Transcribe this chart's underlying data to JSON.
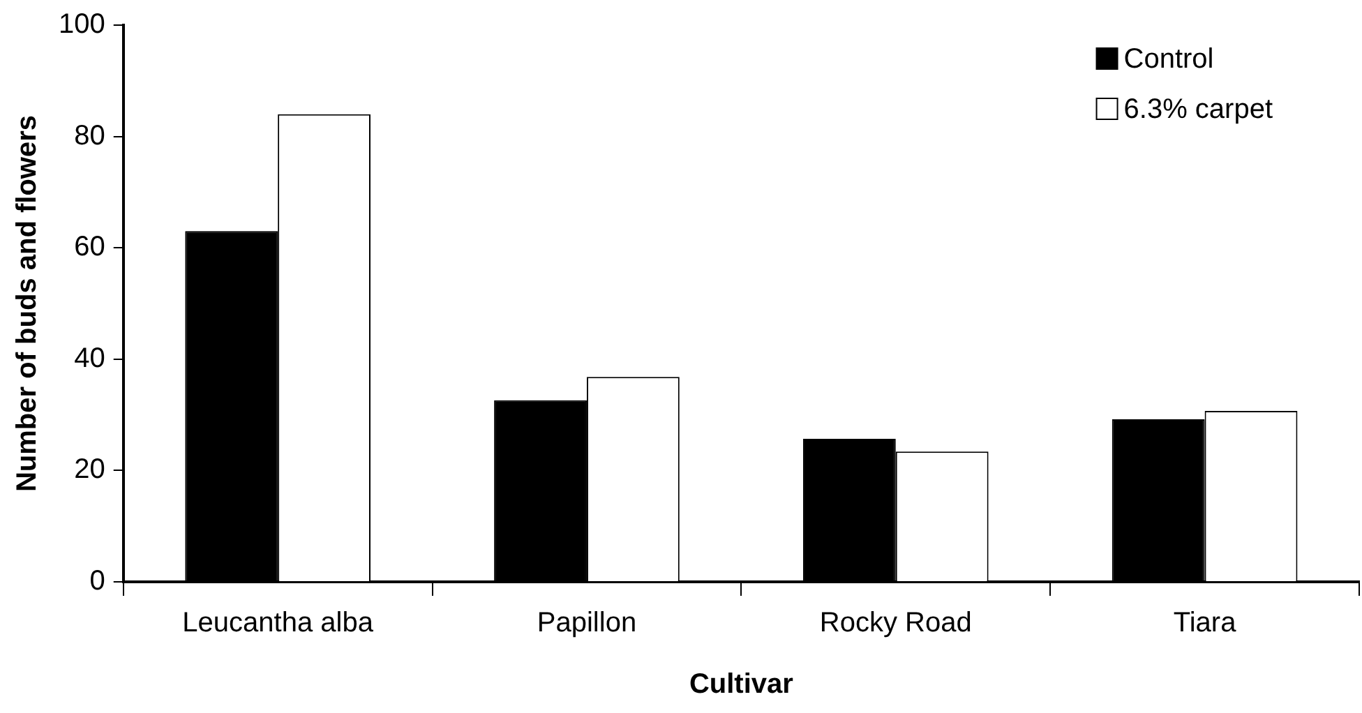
{
  "chart_data": {
    "type": "bar",
    "xlabel": "Cultivar",
    "ylabel": "Number of buds and flowers",
    "categories": [
      "Leucantha alba",
      "Papillon",
      "Rocky Road",
      "Tiara"
    ],
    "series": [
      {
        "name": "Control",
        "color": "#000000",
        "values": [
          63,
          32.6,
          25.7,
          29.2
        ]
      },
      {
        "name": "6.3% carpet",
        "color": "#ffffff",
        "values": [
          84,
          36.8,
          23.4,
          30.7
        ]
      }
    ],
    "ylim": [
      0,
      100
    ],
    "yticks": [
      0,
      20,
      40,
      60,
      80,
      100
    ],
    "grid": false,
    "legend": "top right"
  }
}
